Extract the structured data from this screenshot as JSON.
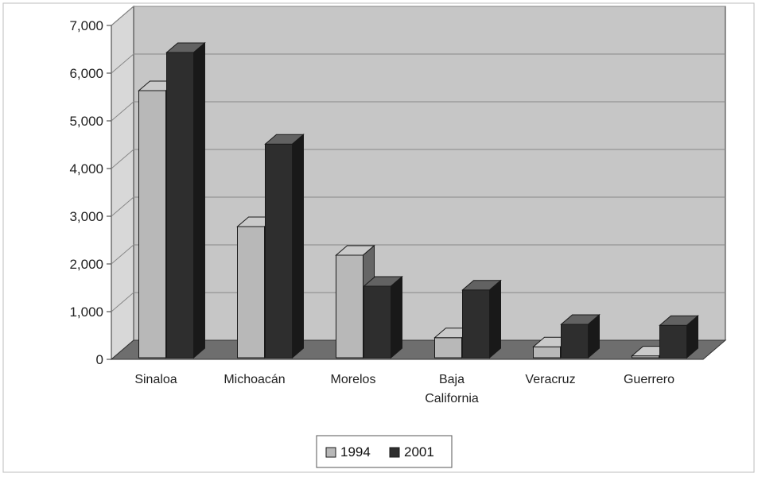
{
  "chart_data": {
    "type": "bar",
    "categories": [
      [
        "Sinaloa"
      ],
      [
        "Michoacán"
      ],
      [
        "Morelos"
      ],
      [
        "Baja",
        "California"
      ],
      [
        "Veracruz"
      ],
      [
        "Guerrero"
      ]
    ],
    "series": [
      {
        "name": "1994",
        "values": [
          5600,
          2750,
          2150,
          420,
          230,
          40
        ],
        "color": "#b8b8b8"
      },
      {
        "name": "2001",
        "values": [
          6400,
          4480,
          1500,
          1420,
          700,
          680
        ],
        "color": "#2e2e2e"
      }
    ],
    "yticks": [
      "0",
      "1,000",
      "2,000",
      "3,000",
      "4,000",
      "5,000",
      "6,000",
      "7,000"
    ],
    "ylim": [
      0,
      7000
    ],
    "grid": true,
    "legend_position": "bottom",
    "colors": {
      "plot_back": "#c6c6c6",
      "plot_floor": "#6e6e6e",
      "plot_side": "#d8d8d8",
      "gridline": "#888888"
    }
  }
}
